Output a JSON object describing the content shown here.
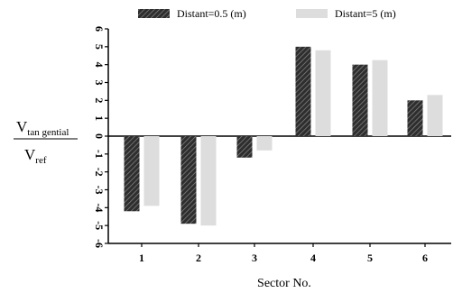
{
  "chart_data": {
    "type": "bar",
    "categories": [
      "1",
      "2",
      "3",
      "4",
      "5",
      "6"
    ],
    "series": [
      {
        "name": "Distant=0.5 (m)",
        "values": [
          -4.2,
          -4.9,
          -1.2,
          5.0,
          4.0,
          2.0
        ],
        "color": "#444444",
        "pattern": "hatched"
      },
      {
        "name": "Distant=5 (m)",
        "values": [
          -3.9,
          -5.0,
          -0.8,
          4.8,
          4.25,
          2.3
        ],
        "color": "#dddddd",
        "pattern": "solid"
      }
    ],
    "title": "",
    "xlabel": "Sector No.",
    "ylabel": {
      "numerator": "V",
      "numerator_sub": "tan gential",
      "denominator": "V",
      "denominator_sub": "ref"
    },
    "ylim": [
      -6,
      6
    ],
    "yticks": [
      "6",
      "5",
      "4",
      "3",
      "2",
      "1",
      "0",
      "-1",
      "-2",
      "-3",
      "-4",
      "-5",
      "-6"
    ],
    "grid": false,
    "legend_position": "top"
  }
}
